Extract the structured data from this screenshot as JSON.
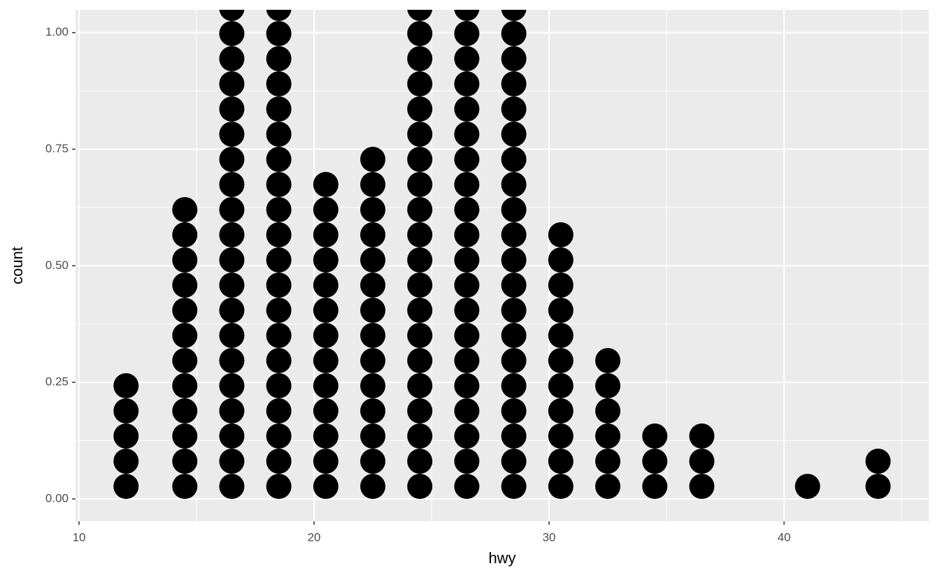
{
  "chart_data": {
    "type": "dotplot",
    "x_label": "hwy",
    "y_label": "count",
    "x": [
      12,
      14.5,
      16.5,
      18.5,
      20.5,
      22.5,
      24.5,
      26.5,
      28.5,
      30.5,
      32.5,
      34.5,
      36.5,
      41,
      44
    ],
    "values": [
      5,
      12,
      20,
      20,
      13,
      14,
      20,
      20,
      20,
      11,
      6,
      3,
      3,
      1,
      2
    ],
    "color": "#000000",
    "xlim": [
      9.85,
      46.16
    ],
    "xticks": [
      10,
      20,
      30,
      40
    ],
    "ylim": [
      -0.048,
      1.049
    ],
    "yticks": [
      {
        "value": 0,
        "label": "0.00"
      },
      {
        "value": 0.25,
        "label": "0.25"
      },
      {
        "value": 0.5,
        "label": "0.50"
      },
      {
        "value": 0.75,
        "label": "0.75"
      },
      {
        "value": 1,
        "label": "1.00"
      }
    ],
    "grid": true
  }
}
